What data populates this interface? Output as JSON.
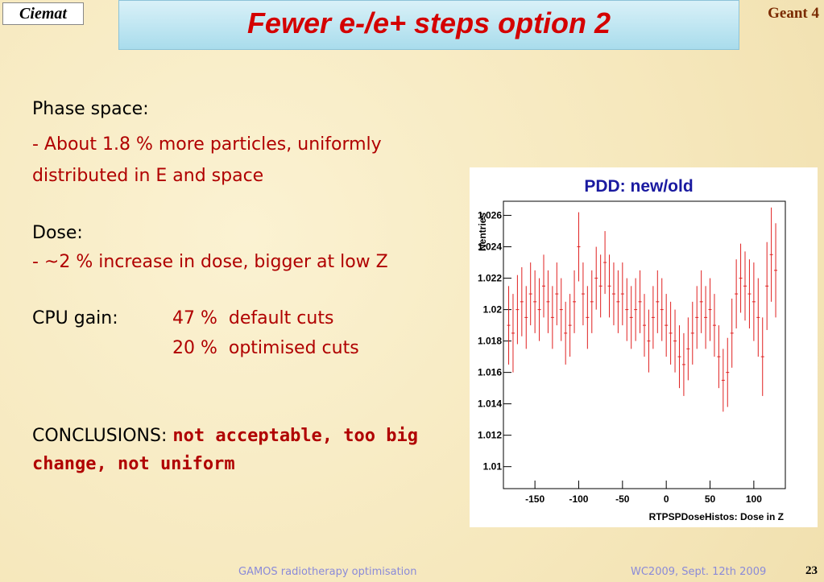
{
  "header": {
    "logo": "Ciemat",
    "title": "Fewer e-/e+ steps option 2",
    "badge": "Geant 4"
  },
  "body": {
    "phase_label": "Phase space:",
    "phase_text": "- About 1.8 % more particles, uniformly distributed in E and space",
    "dose_label": "Dose:",
    "dose_text": "- ~2 % increase in dose, bigger at low Z",
    "cpu_label": "CPU gain:",
    "cpu_default": "47 %  default cuts",
    "cpu_optimised": "20 %  optimised cuts",
    "conclusions_label": "CONCLUSIONS:",
    "conclusions_text": "not acceptable, too big change, not uniform"
  },
  "chart_data": {
    "type": "errorbar",
    "title": "PDD: new/old",
    "x_label": "RTPSPDoseHistos: Dose in Z",
    "y_label": "Nentries",
    "color": "#e02020",
    "x": [
      -180,
      -175,
      -170,
      -165,
      -160,
      -155,
      -150,
      -145,
      -140,
      -135,
      -130,
      -125,
      -120,
      -115,
      -110,
      -105,
      -100,
      -95,
      -90,
      -85,
      -80,
      -75,
      -70,
      -65,
      -60,
      -55,
      -50,
      -45,
      -40,
      -35,
      -30,
      -25,
      -20,
      -15,
      -10,
      -5,
      0,
      5,
      10,
      15,
      20,
      25,
      30,
      35,
      40,
      45,
      50,
      55,
      60,
      65,
      70,
      75,
      80,
      85,
      90,
      95,
      100,
      105,
      110,
      115,
      120,
      125
    ],
    "values": [
      1.019,
      1.0185,
      1.02,
      1.0205,
      1.0195,
      1.021,
      1.0205,
      1.02,
      1.0215,
      1.0205,
      1.0195,
      1.021,
      1.02,
      1.0185,
      1.019,
      1.0205,
      1.024,
      1.021,
      1.0195,
      1.0205,
      1.022,
      1.0215,
      1.023,
      1.0215,
      1.021,
      1.0205,
      1.021,
      1.02,
      1.0195,
      1.02,
      1.0205,
      1.019,
      1.018,
      1.0195,
      1.0205,
      1.02,
      1.019,
      1.0185,
      1.018,
      1.017,
      1.0165,
      1.0175,
      1.0185,
      1.0195,
      1.0205,
      1.0195,
      1.02,
      1.019,
      1.017,
      1.0155,
      1.016,
      1.0185,
      1.021,
      1.022,
      1.0215,
      1.021,
      1.0205,
      1.0195,
      1.017,
      1.0215,
      1.0235,
      1.0225
    ],
    "errors": [
      0.0025,
      0.0025,
      0.0022,
      0.0022,
      0.002,
      0.002,
      0.002,
      0.002,
      0.002,
      0.002,
      0.002,
      0.002,
      0.002,
      0.002,
      0.002,
      0.002,
      0.0022,
      0.002,
      0.002,
      0.002,
      0.002,
      0.002,
      0.002,
      0.002,
      0.002,
      0.002,
      0.002,
      0.002,
      0.002,
      0.002,
      0.002,
      0.002,
      0.002,
      0.002,
      0.002,
      0.002,
      0.002,
      0.002,
      0.002,
      0.002,
      0.002,
      0.002,
      0.002,
      0.002,
      0.002,
      0.002,
      0.002,
      0.002,
      0.002,
      0.002,
      0.0022,
      0.0022,
      0.0022,
      0.0022,
      0.0022,
      0.0022,
      0.0025,
      0.0025,
      0.0025,
      0.0028,
      0.003,
      0.003
    ],
    "xlim": [
      -186,
      136
    ],
    "ylim": [
      1.0086,
      1.0269
    ],
    "xticks": [
      -150,
      -100,
      -50,
      0,
      50,
      100
    ],
    "yticks": [
      1.01,
      1.012,
      1.014,
      1.016,
      1.018,
      1.02,
      1.022,
      1.024,
      1.026
    ]
  },
  "footer": {
    "left": "GAMOS radiotherapy optimisation",
    "right": "WC2009, Sept. 12th 2009",
    "page": 23
  }
}
